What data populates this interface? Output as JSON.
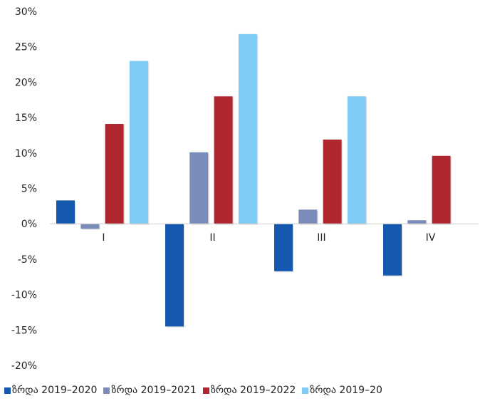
{
  "chart_data": {
    "type": "bar",
    "categories": [
      "I",
      "II",
      "III",
      "IV"
    ],
    "series": [
      {
        "name": "ზრდა 2019–2020",
        "color": "#1558b0",
        "values": [
          3.3,
          -14.5,
          -6.7,
          -7.3
        ]
      },
      {
        "name": "ზრდა 2019–2021",
        "color": "#7b8cba",
        "values": [
          -0.7,
          10.1,
          2.0,
          0.5
        ]
      },
      {
        "name": "ზრდა 2019–2022",
        "color": "#b0262e",
        "values": [
          14.1,
          18.0,
          11.9,
          9.6
        ]
      },
      {
        "name": "ზრდა 2019–20",
        "color": "#7ecbf3",
        "values": [
          23.0,
          26.8,
          18.0,
          null
        ]
      }
    ],
    "yticks": [
      "30%",
      "25%",
      "20%",
      "15%",
      "10%",
      "5%",
      "0%",
      "-5%",
      "-10%",
      "-15%",
      "-20%"
    ],
    "ylim": [
      -20,
      30
    ],
    "grid": false,
    "legend": "bottom"
  }
}
